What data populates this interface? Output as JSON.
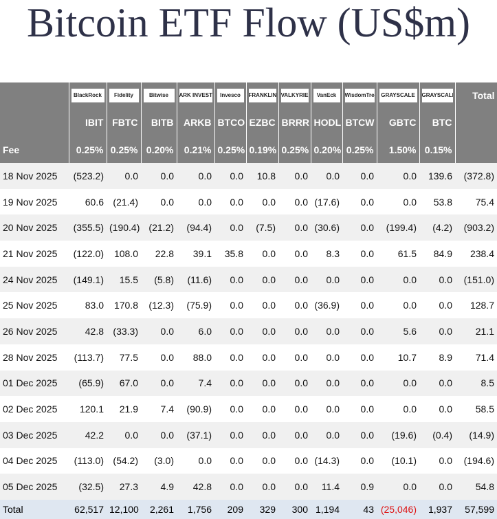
{
  "title": "Bitcoin ETF Flow (US$m)",
  "table": {
    "logos": [
      "BlackRock",
      "Fidelity",
      "Bitwise",
      "ARK INVEST",
      "Invesco",
      "FRANKLIN TEMPLETON",
      "VALKYRIE",
      "VanEck",
      "WisdomTree",
      "GRAYSCALE",
      "GRAYSCALE"
    ],
    "total_header": "Total",
    "tickers": [
      "IBIT",
      "FBTC",
      "BITB",
      "ARKB",
      "BTCO",
      "EZBC",
      "BRRR",
      "HODL",
      "BTCW",
      "GBTC",
      "BTC"
    ],
    "fee_label": "Fee",
    "fees": [
      "0.25%",
      "0.25%",
      "0.20%",
      "0.21%",
      "0.25%",
      "0.19%",
      "0.25%",
      "0.20%",
      "0.25%",
      "1.50%",
      "0.15%"
    ],
    "rows": [
      {
        "date": "18 Nov 2025",
        "cells": [
          "(523.2)",
          "0.0",
          "0.0",
          "0.0",
          "0.0",
          "10.8",
          "0.0",
          "0.0",
          "0.0",
          "0.0",
          "139.6",
          "(372.8)"
        ]
      },
      {
        "date": "19 Nov 2025",
        "cells": [
          "60.6",
          "(21.4)",
          "0.0",
          "0.0",
          "0.0",
          "0.0",
          "0.0",
          "(17.6)",
          "0.0",
          "0.0",
          "53.8",
          "75.4"
        ]
      },
      {
        "date": "20 Nov 2025",
        "cells": [
          "(355.5)",
          "(190.4)",
          "(21.2)",
          "(94.4)",
          "0.0",
          "(7.5)",
          "0.0",
          "(30.6)",
          "0.0",
          "(199.4)",
          "(4.2)",
          "(903.2)"
        ]
      },
      {
        "date": "21 Nov 2025",
        "cells": [
          "(122.0)",
          "108.0",
          "22.8",
          "39.1",
          "35.8",
          "0.0",
          "0.0",
          "8.3",
          "0.0",
          "61.5",
          "84.9",
          "238.4"
        ]
      },
      {
        "date": "24 Nov 2025",
        "cells": [
          "(149.1)",
          "15.5",
          "(5.8)",
          "(11.6)",
          "0.0",
          "0.0",
          "0.0",
          "0.0",
          "0.0",
          "0.0",
          "0.0",
          "(151.0)"
        ]
      },
      {
        "date": "25 Nov 2025",
        "cells": [
          "83.0",
          "170.8",
          "(12.3)",
          "(75.9)",
          "0.0",
          "0.0",
          "0.0",
          "(36.9)",
          "0.0",
          "0.0",
          "0.0",
          "128.7"
        ]
      },
      {
        "date": "26 Nov 2025",
        "cells": [
          "42.8",
          "(33.3)",
          "0.0",
          "6.0",
          "0.0",
          "0.0",
          "0.0",
          "0.0",
          "0.0",
          "5.6",
          "0.0",
          "21.1"
        ]
      },
      {
        "date": "28 Nov 2025",
        "cells": [
          "(113.7)",
          "77.5",
          "0.0",
          "88.0",
          "0.0",
          "0.0",
          "0.0",
          "0.0",
          "0.0",
          "10.7",
          "8.9",
          "71.4"
        ]
      },
      {
        "date": "01 Dec 2025",
        "cells": [
          "(65.9)",
          "67.0",
          "0.0",
          "7.4",
          "0.0",
          "0.0",
          "0.0",
          "0.0",
          "0.0",
          "0.0",
          "0.0",
          "8.5"
        ]
      },
      {
        "date": "02 Dec 2025",
        "cells": [
          "120.1",
          "21.9",
          "7.4",
          "(90.9)",
          "0.0",
          "0.0",
          "0.0",
          "0.0",
          "0.0",
          "0.0",
          "0.0",
          "58.5"
        ]
      },
      {
        "date": "03 Dec 2025",
        "cells": [
          "42.2",
          "0.0",
          "0.0",
          "(37.1)",
          "0.0",
          "0.0",
          "0.0",
          "0.0",
          "0.0",
          "(19.6)",
          "(0.4)",
          "(14.9)"
        ]
      },
      {
        "date": "04 Dec 2025",
        "cells": [
          "(113.0)",
          "(54.2)",
          "(3.0)",
          "0.0",
          "0.0",
          "0.0",
          "0.0",
          "(14.3)",
          "0.0",
          "(10.1)",
          "0.0",
          "(194.6)"
        ]
      },
      {
        "date": "05 Dec 2025",
        "cells": [
          "(32.5)",
          "27.3",
          "4.9",
          "42.8",
          "0.0",
          "0.0",
          "0.0",
          "11.4",
          "0.9",
          "0.0",
          "0.0",
          "54.8"
        ]
      }
    ],
    "total_row": {
      "label": "Total",
      "cells": [
        "62,517",
        "12,100",
        "2,261",
        "1,756",
        "209",
        "329",
        "300",
        "1,194",
        "43",
        "(25,046)",
        "1,937",
        "57,599"
      ]
    }
  }
}
